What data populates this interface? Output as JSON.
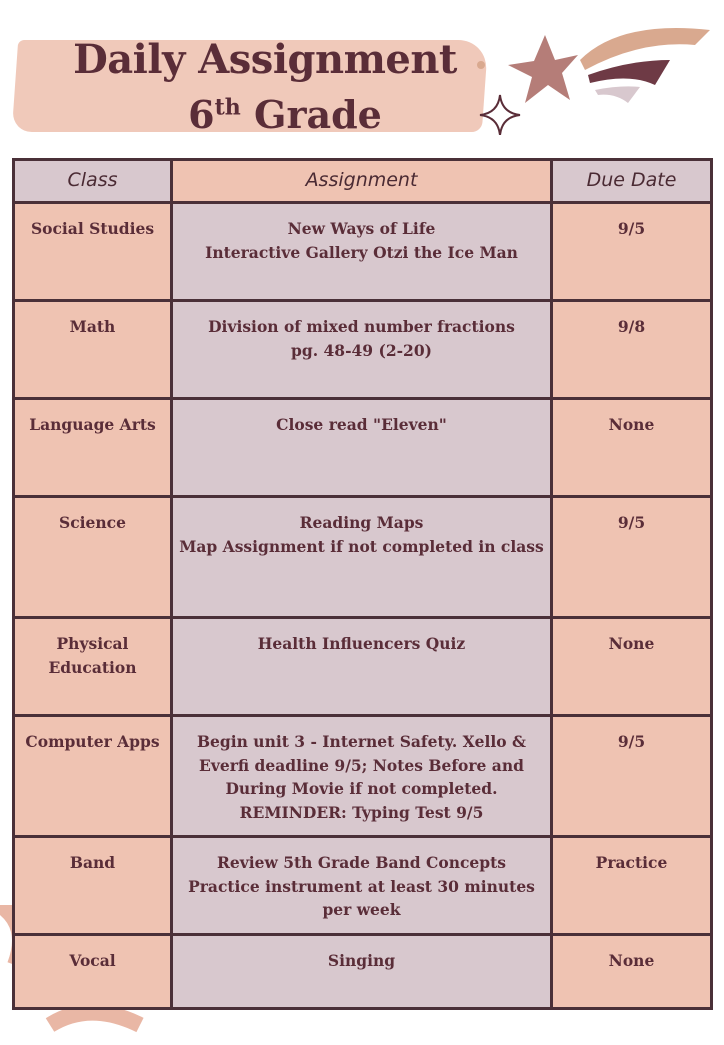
{
  "header": {
    "title_line1": "Daily Assignment",
    "title_grade_number": "6",
    "title_grade_suffix": "th",
    "title_grade_word": "Grade"
  },
  "colors": {
    "peach": "#efc3b2",
    "mauve": "#d8c8ce",
    "text": "#5a2d38",
    "border": "#4a3038"
  },
  "table": {
    "columns": [
      "Class",
      "Assignment",
      "Due Date"
    ],
    "rows": [
      {
        "class": "Social Studies",
        "assignment": [
          "New Ways of Life",
          "Interactive Gallery Otzi the Ice Man"
        ],
        "due": "9/5"
      },
      {
        "class": "Math",
        "assignment": [
          "Division of mixed number fractions",
          "pg. 48-49 (2-20)"
        ],
        "due": "9/8"
      },
      {
        "class": "Language Arts",
        "assignment": [
          "Close read \"Eleven\""
        ],
        "due": "None"
      },
      {
        "class": "Science",
        "assignment": [
          "Reading Maps",
          "Map Assignment if not completed in class"
        ],
        "due": "9/5"
      },
      {
        "class": "Physical Education",
        "assignment": [
          "Health Influencers Quiz"
        ],
        "due": "None"
      },
      {
        "class": "Computer Apps",
        "assignment": [
          "Begin unit 3 - Internet Safety. Xello & Everfi deadline 9/5; Notes Before and During Movie if not completed.",
          "REMINDER: Typing Test 9/5"
        ],
        "due": "9/5"
      },
      {
        "class": "Band",
        "assignment": [
          "Review 5th Grade Band Concepts",
          "Practice instrument at least 30 minutes per week"
        ],
        "due": "Practice"
      },
      {
        "class": "Vocal",
        "assignment": [
          "Singing"
        ],
        "due": "None"
      }
    ]
  }
}
